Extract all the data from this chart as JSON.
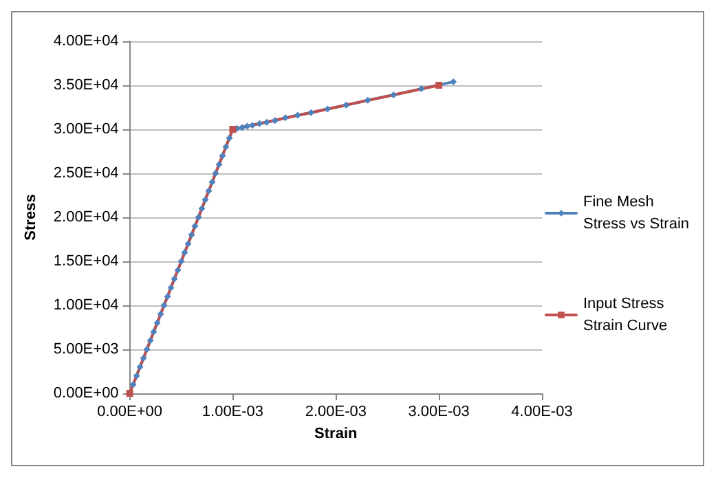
{
  "chart_data": {
    "type": "line",
    "xlabel": "Strain",
    "ylabel": "Stress",
    "xlim": [
      0,
      0.004
    ],
    "xticks": [
      {
        "value": 0,
        "label": "0.00E+00"
      },
      {
        "value": 0.001,
        "label": "1.00E-03"
      },
      {
        "value": 0.002,
        "label": "2.00E-03"
      },
      {
        "value": 0.003,
        "label": "3.00E-03"
      },
      {
        "value": 0.004,
        "label": "4.00E-03"
      }
    ],
    "ylim": [
      0,
      40000
    ],
    "yticks": [
      {
        "value": 0,
        "label": "0.00E+00"
      },
      {
        "value": 5000,
        "label": "5.00E+03"
      },
      {
        "value": 10000,
        "label": "1.00E+04"
      },
      {
        "value": 15000,
        "label": "1.50E+04"
      },
      {
        "value": 20000,
        "label": "2.00E+04"
      },
      {
        "value": 25000,
        "label": "2.50E+04"
      },
      {
        "value": 30000,
        "label": "3.00E+04"
      },
      {
        "value": 35000,
        "label": "3.50E+04"
      },
      {
        "value": 40000,
        "label": "4.00E+04"
      }
    ],
    "grid": "y",
    "legend": "right",
    "line_style": "solid",
    "series": [
      {
        "name": "Fine Mesh Stress vs Strain",
        "color": "#4f81bd",
        "marker": "diamond",
        "x": [
          3.33e-05,
          6.67e-05,
          0.0001,
          0.000133,
          0.000167,
          0.0002,
          0.000233,
          0.000267,
          0.0003,
          0.000333,
          0.000367,
          0.0004,
          0.000433,
          0.000467,
          0.0005,
          0.000533,
          0.000567,
          0.0006,
          0.000633,
          0.000667,
          0.0007,
          0.000733,
          0.000767,
          0.0008,
          0.000833,
          0.000867,
          0.0009,
          0.000933,
          0.000967,
          0.001,
          0.00104,
          0.00109,
          0.00114,
          0.00119,
          0.00126,
          0.00133,
          0.00141,
          0.00151,
          0.00163,
          0.00176,
          0.00192,
          0.0021,
          0.00231,
          0.00256,
          0.00283,
          0.00314
        ],
        "values": [
          1000,
          2000,
          3000,
          4000,
          5000,
          6000,
          7000,
          8000,
          9000,
          10000,
          11000,
          12000,
          13000,
          14000,
          15000,
          16000,
          17000,
          18000,
          19000,
          20000,
          21000,
          22000,
          23000,
          24000,
          25000,
          26000,
          27000,
          28000,
          29000,
          30000,
          30100,
          30200,
          30350,
          30450,
          30650,
          30800,
          31000,
          31300,
          31600,
          31900,
          32300,
          32750,
          33300,
          33900,
          34600,
          35400
        ]
      },
      {
        "name": "Input Stress Strain Curve",
        "color": "#c0504d",
        "marker": "square",
        "x": [
          0,
          0.001,
          0.003
        ],
        "values": [
          0,
          30000,
          35000
        ]
      }
    ]
  }
}
